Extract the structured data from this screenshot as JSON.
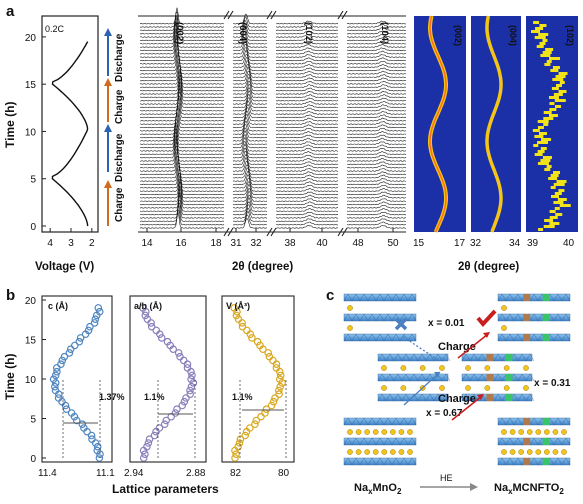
{
  "panel_a": {
    "letter": "a",
    "rate": "0.2C",
    "y_label": "Time (h)",
    "y_ticks": [
      "0",
      "5",
      "10",
      "15",
      "20"
    ],
    "volt_ticks": [
      "4",
      "3",
      "2"
    ],
    "volt_label": "Voltage (V)",
    "process_labels": [
      "Charge",
      "Discharge",
      "Charge",
      "Discharge"
    ],
    "two_theta_label": "2θ (degree)",
    "two_theta_label_2": "2θ (degree)",
    "xrd_ticks": [
      "14",
      "16",
      "18",
      "31",
      "32",
      "38",
      "40",
      "48",
      "50"
    ],
    "peaks": [
      "(002)",
      "(004)",
      "(102)",
      "(104)"
    ],
    "map_peaks": [
      "(002)",
      "(004)",
      "(102)"
    ],
    "map_ticks": [
      "15",
      "17",
      "32",
      "34",
      "39",
      "40"
    ]
  },
  "panel_b": {
    "letter": "b",
    "y_label": "Time (h)",
    "y_ticks": [
      "0",
      "5",
      "10",
      "15",
      "20"
    ],
    "x_label": "Lattice parameters",
    "sub": [
      {
        "title": "c (Å)",
        "pct": "1.37%",
        "ticks": [
          "11.4",
          "11.1"
        ],
        "color": "#4f86c0"
      },
      {
        "title": "a/b (Å)",
        "pct": "1.1%",
        "ticks": [
          "2.94",
          "2.88"
        ],
        "color": "#8a7fba"
      },
      {
        "title": "V (Å³)",
        "pct": "1.1%",
        "ticks": [
          "82",
          "80"
        ],
        "color": "#d9a820"
      }
    ]
  },
  "panel_c": {
    "letter": "c",
    "x_top": "x = 0.01",
    "x_mid": "x = 0.31",
    "x_bot": "x = 0.67",
    "charge_top": "Charge",
    "charge_bot": "Charge",
    "arrow": "HE",
    "left_formula": {
      "a": "Na",
      "sub": "x",
      "b": "MnO",
      "sub2": "2"
    },
    "right_formula": {
      "a": "Na",
      "sub": "x",
      "b": "MCNFTO",
      "sub2": "2"
    }
  }
}
